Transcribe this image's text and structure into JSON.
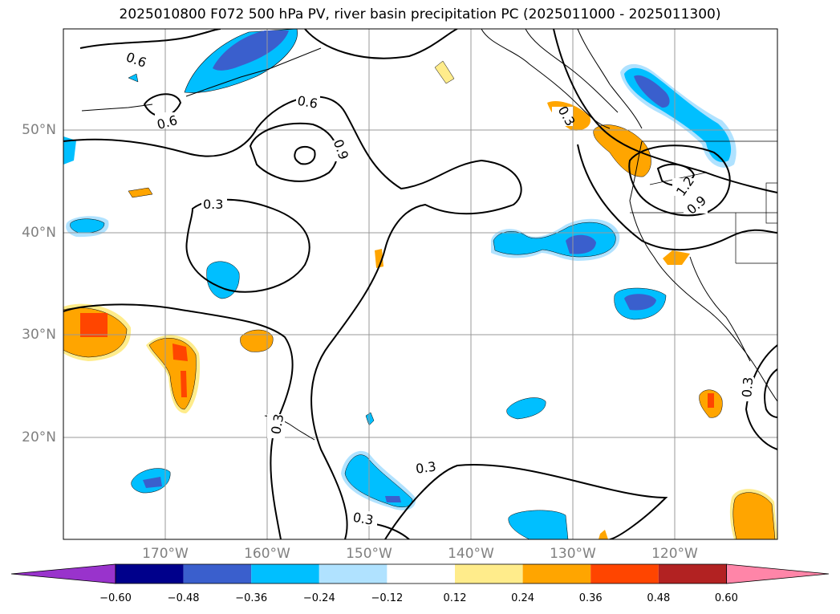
{
  "title": "2025010800 F072 500 hPa PV, river basin precipitation PC (2025011000 - 2025011300)",
  "lat_labels": [
    "50°N",
    "40°N",
    "30°N",
    "20°N"
  ],
  "lon_labels": [
    "170°W",
    "160°W",
    "150°W",
    "140°W",
    "130°W",
    "120°W"
  ],
  "colorbar": {
    "colors": [
      "#9933cc",
      "#00008b",
      "#3a5fcd",
      "#00bfff",
      "#b0e2ff",
      "#ffffff",
      "#ffec8b",
      "#ffa500",
      "#ff4500",
      "#b22222",
      "#ff85a8"
    ],
    "ticks": [
      "−0.60",
      "−0.48",
      "−0.36",
      "−0.24",
      "−0.12",
      "0.12",
      "0.24",
      "0.36",
      "0.48",
      "0.60"
    ]
  },
  "contour_labels": [
    "0.6",
    "0.6",
    "0.6",
    "0.9",
    "0.3",
    "0.3",
    "1.2",
    "0.9",
    "0.3",
    "0.3",
    "0.3",
    "0.3"
  ]
}
